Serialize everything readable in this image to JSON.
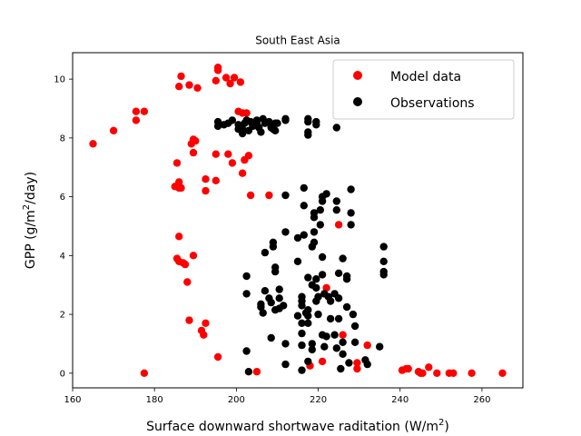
{
  "chart_data": {
    "type": "scatter",
    "title": "South East Asia",
    "xlabel": "Surface downward shortwave raditation (W/m",
    "xlabel_sup": "2",
    "xlabel_end": ")",
    "ylabel_pre": "GPP (g/m",
    "ylabel_sup": "2",
    "ylabel_post": "/day)",
    "xlim": [
      160,
      270
    ],
    "ylim": [
      -0.5,
      10.9
    ],
    "xticks": [
      160,
      180,
      200,
      220,
      240,
      260
    ],
    "yticks": [
      0,
      2,
      4,
      6,
      8,
      10
    ],
    "grid": false,
    "legend_position": "top-right",
    "series": [
      {
        "name": "Model data",
        "color": "#ff0000",
        "points": [
          [
            165,
            7.8
          ],
          [
            170,
            8.25
          ],
          [
            175.5,
            8.9
          ],
          [
            175.5,
            8.6
          ],
          [
            177.5,
            8.9
          ],
          [
            177.5,
            0.0
          ],
          [
            185,
            6.35
          ],
          [
            186,
            6.5
          ],
          [
            186,
            6.3
          ],
          [
            186.5,
            6.3
          ],
          [
            185.5,
            7.15
          ],
          [
            186,
            9.75
          ],
          [
            186.5,
            10.1
          ],
          [
            188.5,
            9.8
          ],
          [
            190.5,
            9.7
          ],
          [
            189,
            7.8
          ],
          [
            189.5,
            7.95
          ],
          [
            190,
            7.9
          ],
          [
            189.5,
            7.5
          ],
          [
            185.5,
            3.9
          ],
          [
            186,
            3.8
          ],
          [
            187,
            3.75
          ],
          [
            187.5,
            3.7
          ],
          [
            189.5,
            4.0
          ],
          [
            186,
            4.65
          ],
          [
            188,
            3.1
          ],
          [
            188.5,
            1.8
          ],
          [
            191.5,
            1.45
          ],
          [
            192,
            1.3
          ],
          [
            192.5,
            1.7
          ],
          [
            195.5,
            0.55
          ],
          [
            192.5,
            6.6
          ],
          [
            192.5,
            6.2
          ],
          [
            195,
            6.55
          ],
          [
            195,
            7.45
          ],
          [
            195,
            9.95
          ],
          [
            195.5,
            10.3
          ],
          [
            195.5,
            10.4
          ],
          [
            197.5,
            10.05
          ],
          [
            198.5,
            9.85
          ],
          [
            199.5,
            10.05
          ],
          [
            198,
            7.45
          ],
          [
            199,
            7.15
          ],
          [
            200.5,
            8.9
          ],
          [
            201.5,
            8.85
          ],
          [
            201,
            9.9
          ],
          [
            202.5,
            8.85
          ],
          [
            201.5,
            6.8
          ],
          [
            202,
            7.25
          ],
          [
            203,
            7.4
          ],
          [
            203.5,
            6.05
          ],
          [
            208,
            6.05
          ],
          [
            205,
            0.05
          ],
          [
            218,
            0.25
          ],
          [
            221,
            0.4
          ],
          [
            222,
            2.9
          ],
          [
            225,
            5.05
          ],
          [
            226,
            1.3
          ],
          [
            229.5,
            0.35
          ],
          [
            229.5,
            0.15
          ],
          [
            232,
            0.95
          ],
          [
            240.5,
            0.1
          ],
          [
            241.5,
            0.15
          ],
          [
            242,
            0.15
          ],
          [
            244.5,
            0.05
          ],
          [
            245,
            0.0
          ],
          [
            245.5,
            0.0
          ],
          [
            247,
            0.2
          ],
          [
            249,
            0.0
          ],
          [
            252,
            0.0
          ],
          [
            253,
            0.0
          ],
          [
            257.5,
            0.0
          ],
          [
            265,
            0.0
          ]
        ]
      },
      {
        "name": "Observations",
        "color": "#000000",
        "points": [
          [
            195.5,
            8.4
          ],
          [
            195.5,
            8.55
          ],
          [
            197,
            8.45
          ],
          [
            198,
            8.5
          ],
          [
            199,
            8.6
          ],
          [
            200.5,
            8.3
          ],
          [
            200.5,
            8.45
          ],
          [
            201.5,
            8.15
          ],
          [
            201.5,
            8.3
          ],
          [
            202,
            8.5
          ],
          [
            202.5,
            8.6
          ],
          [
            203,
            8.25
          ],
          [
            203.5,
            8.55
          ],
          [
            204,
            8.4
          ],
          [
            205,
            8.6
          ],
          [
            205,
            8.5
          ],
          [
            205.5,
            8.35
          ],
          [
            206,
            8.2
          ],
          [
            206.5,
            8.65
          ],
          [
            207,
            8.5
          ],
          [
            208,
            8.55
          ],
          [
            208.5,
            8.35
          ],
          [
            209,
            8.3
          ],
          [
            209.5,
            8.25
          ],
          [
            209.5,
            8.5
          ],
          [
            210,
            8.5
          ],
          [
            212,
            8.6
          ],
          [
            212,
            8.65
          ],
          [
            217.5,
            8.65
          ],
          [
            217.5,
            8.55
          ],
          [
            217.5,
            8.2
          ],
          [
            217.5,
            8.1
          ],
          [
            219.5,
            8.55
          ],
          [
            219.5,
            8.45
          ],
          [
            224.5,
            8.35
          ],
          [
            202.5,
            3.3
          ],
          [
            202.5,
            2.7
          ],
          [
            202.5,
            0.75
          ],
          [
            203,
            0.05
          ],
          [
            206,
            2.35
          ],
          [
            206,
            2.25
          ],
          [
            206.5,
            2.05
          ],
          [
            207,
            2.8
          ],
          [
            207,
            4.1
          ],
          [
            208,
            2.55
          ],
          [
            208.5,
            2.4
          ],
          [
            209,
            4.3
          ],
          [
            209,
            4.45
          ],
          [
            209.5,
            3.6
          ],
          [
            209.5,
            3.45
          ],
          [
            209.5,
            2.15
          ],
          [
            208.5,
            1.2
          ],
          [
            210.5,
            2.55
          ],
          [
            210.5,
            2.2
          ],
          [
            210.5,
            2.85
          ],
          [
            211.5,
            2.3
          ],
          [
            212,
            0.3
          ],
          [
            212,
            1.0
          ],
          [
            212,
            4.8
          ],
          [
            212,
            6.05
          ],
          [
            215,
            3.8
          ],
          [
            215,
            4.6
          ],
          [
            215,
            1.95
          ],
          [
            216,
            2.6
          ],
          [
            216,
            2.45
          ],
          [
            216,
            2.3
          ],
          [
            216,
            1.7
          ],
          [
            216,
            1.35
          ],
          [
            216,
            0.95
          ],
          [
            216,
            0.1
          ],
          [
            216.5,
            6.3
          ],
          [
            216.5,
            5.7
          ],
          [
            216.5,
            4.7
          ],
          [
            217,
            2.05
          ],
          [
            217.5,
            3.25
          ],
          [
            217.5,
            2.15
          ],
          [
            217.5,
            1.95
          ],
          [
            217.5,
            1.7
          ],
          [
            217.5,
            0.4
          ],
          [
            218.5,
            4.3
          ],
          [
            218.5,
            3.0
          ],
          [
            218.5,
            1.0
          ],
          [
            218.5,
            0.8
          ],
          [
            219,
            5.3
          ],
          [
            219,
            5.45
          ],
          [
            219,
            4.8
          ],
          [
            219,
            4.45
          ],
          [
            219.5,
            3.2
          ],
          [
            219.5,
            2.9
          ],
          [
            219.5,
            2.45
          ],
          [
            220,
            2.6
          ],
          [
            220,
            2.0
          ],
          [
            220.5,
            5.55
          ],
          [
            220.5,
            5.05
          ],
          [
            221,
            6.0
          ],
          [
            221,
            5.85
          ],
          [
            221,
            3.95
          ],
          [
            221,
            3.35
          ],
          [
            221,
            1.3
          ],
          [
            221.5,
            2.7
          ],
          [
            221.5,
            0.9
          ],
          [
            222,
            6.1
          ],
          [
            222,
            1.25
          ],
          [
            222.5,
            2.6
          ],
          [
            223,
            2.45
          ],
          [
            223,
            1.85
          ],
          [
            224,
            2.7
          ],
          [
            224,
            1.3
          ],
          [
            224.5,
            5.85
          ],
          [
            224.5,
            5.55
          ],
          [
            224.5,
            0.85
          ],
          [
            225,
            3.4
          ],
          [
            225,
            2.55
          ],
          [
            225,
            1.85
          ],
          [
            225.5,
            0.15
          ],
          [
            226,
            3.9
          ],
          [
            226,
            1.05
          ],
          [
            226,
            0.65
          ],
          [
            227,
            3.3
          ],
          [
            227,
            3.2
          ],
          [
            227,
            2.25
          ],
          [
            227.5,
            0.35
          ],
          [
            228,
            5.45
          ],
          [
            228,
            5.05
          ],
          [
            228,
            6.25
          ],
          [
            228.5,
            2.0
          ],
          [
            229,
            1.6
          ],
          [
            229,
            1.05
          ],
          [
            231.5,
            0.45
          ],
          [
            232,
            0.3
          ],
          [
            235,
            0.9
          ],
          [
            236,
            4.3
          ],
          [
            236,
            3.8
          ],
          [
            236,
            3.45
          ],
          [
            236,
            3.35
          ]
        ]
      }
    ]
  }
}
